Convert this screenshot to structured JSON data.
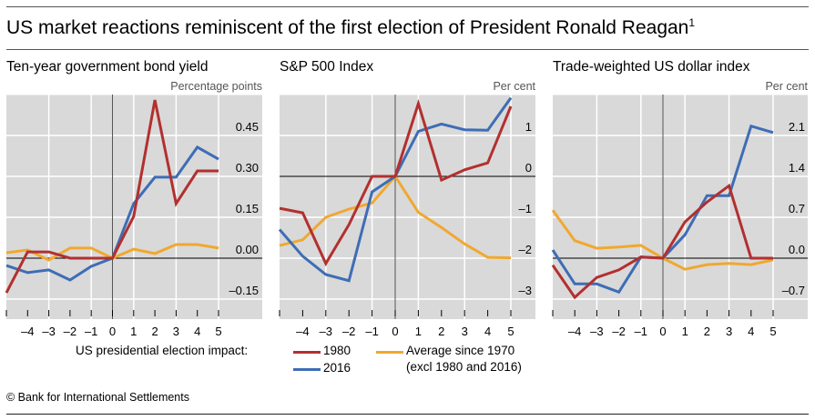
{
  "title": "US market reactions reminiscent of the first election of President Ronald Reagan",
  "title_footnote": "1",
  "footer": "© Bank for International Settlements",
  "legend": {
    "heading": "US presidential election impact:",
    "items": [
      {
        "label": "1980",
        "color": "#B2302F"
      },
      {
        "label": "2016",
        "color": "#3E6DB5"
      },
      {
        "label": "Average since 1970",
        "label2": "(excl 1980 and 2016)",
        "color": "#F0A830"
      }
    ]
  },
  "chart_data": [
    {
      "type": "line",
      "title": "Ten-year government bond yield",
      "unit": "Percentage points",
      "x": [
        -5,
        -4,
        -3,
        -2,
        -1,
        0,
        1,
        2,
        3,
        4,
        5
      ],
      "x_tick_labels": [
        "",
        "–4",
        "–3",
        "–2",
        "–1",
        "0",
        "1",
        "2",
        "3",
        "4",
        "5"
      ],
      "xlim": [
        -5,
        5
      ],
      "ylim": [
        -0.2,
        0.6
      ],
      "y_ticks": [
        0.45,
        0.3,
        0.15,
        0.0,
        -0.15
      ],
      "y_tick_labels": [
        "0.45",
        "0.30",
        "0.15",
        "0.00",
        "–0.15"
      ],
      "grid": true,
      "series": [
        {
          "name": "Average since 1970 (excl 1980 and 2016)",
          "color": "#F0A830",
          "values": [
            0.02,
            0.03,
            -0.007,
            0.037,
            0.037,
            0,
            0.033,
            0.017,
            0.05,
            0.05,
            0.037
          ]
        },
        {
          "name": "2016",
          "color": "#3E6DB5",
          "values": [
            -0.027,
            -0.053,
            -0.043,
            -0.08,
            -0.03,
            0,
            0.2,
            0.297,
            0.297,
            0.407,
            0.363
          ]
        },
        {
          "name": "1980",
          "color": "#B2302F",
          "values": [
            -0.127,
            0.023,
            0.023,
            0,
            0,
            0,
            0.153,
            0.58,
            0.2,
            0.32,
            0.32
          ]
        }
      ]
    },
    {
      "type": "line",
      "title": "S&P 500 Index",
      "unit": "Per cent",
      "x": [
        -5,
        -4,
        -3,
        -2,
        -1,
        0,
        1,
        2,
        3,
        4,
        5
      ],
      "x_tick_labels": [
        "",
        "–4",
        "–3",
        "–2",
        "–1",
        "0",
        "1",
        "2",
        "3",
        "4",
        "5"
      ],
      "xlim": [
        -5,
        5
      ],
      "ylim": [
        -3.33,
        2.0
      ],
      "y_ticks": [
        1,
        0,
        -1,
        -2,
        -3
      ],
      "y_tick_labels": [
        "1",
        "0",
        "–1",
        "–2",
        "–3"
      ],
      "grid": true,
      "series": [
        {
          "name": "Average since 1970 (excl 1980 and 2016)",
          "color": "#F0A830",
          "values": [
            -1.69,
            -1.55,
            -1.0,
            -0.8,
            -0.65,
            0,
            -0.88,
            -1.25,
            -1.65,
            -1.98,
            -1.99
          ]
        },
        {
          "name": "2016",
          "color": "#3E6DB5",
          "values": [
            -1.3,
            -1.95,
            -2.4,
            -2.55,
            -0.38,
            0,
            1.1,
            1.28,
            1.14,
            1.13,
            1.92
          ]
        },
        {
          "name": "1980",
          "color": "#B2302F",
          "values": [
            -0.78,
            -0.89,
            -2.13,
            -1.18,
            0,
            0,
            1.78,
            -0.09,
            0.16,
            0.33,
            1.71
          ]
        }
      ]
    },
    {
      "type": "line",
      "title": "Trade-weighted US dollar index",
      "unit": "Per cent",
      "x": [
        -5,
        -4,
        -3,
        -2,
        -1,
        0,
        1,
        2,
        3,
        4,
        5
      ],
      "x_tick_labels": [
        "",
        "–4",
        "–3",
        "–2",
        "–1",
        "0",
        "1",
        "2",
        "3",
        "4",
        "5"
      ],
      "xlim": [
        -5,
        5
      ],
      "ylim": [
        -0.93,
        2.8
      ],
      "y_ticks": [
        2.1,
        1.4,
        0.7,
        0.0,
        -0.7
      ],
      "y_tick_labels": [
        "2.1",
        "1.4",
        "0.7",
        "0.0",
        "–0.7"
      ],
      "grid": true,
      "series": [
        {
          "name": "Average since 1970 (excl 1980 and 2016)",
          "color": "#F0A830",
          "values": [
            0.82,
            0.3,
            0.17,
            0.19,
            0.22,
            0,
            -0.19,
            -0.11,
            -0.09,
            -0.11,
            -0.03
          ]
        },
        {
          "name": "2016",
          "color": "#3E6DB5",
          "values": [
            0.14,
            -0.44,
            -0.44,
            -0.58,
            0.02,
            0,
            0.4,
            1.07,
            1.07,
            2.26,
            2.15
          ]
        },
        {
          "name": "1980",
          "color": "#B2302F",
          "values": [
            -0.12,
            -0.67,
            -0.33,
            -0.2,
            0.02,
            0,
            0.62,
            0.96,
            1.24,
            0,
            0
          ]
        }
      ]
    }
  ]
}
